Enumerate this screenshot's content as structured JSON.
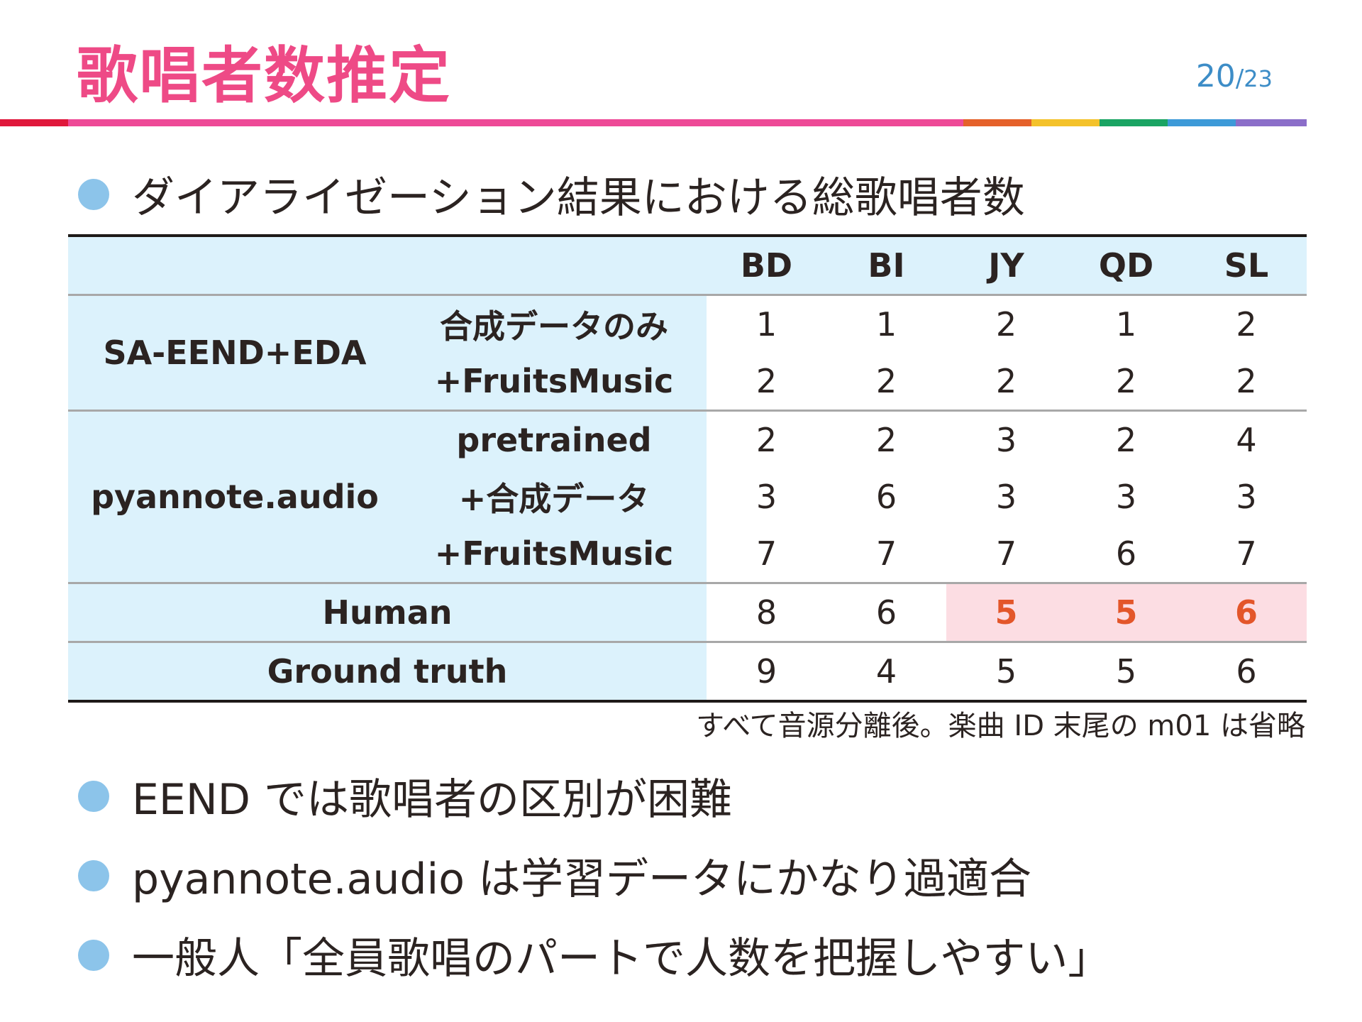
{
  "header": {
    "title": "歌唱者数推定",
    "page_current": "20",
    "page_separator": "/",
    "page_total": "23"
  },
  "colors": {
    "title": "#ee4a86",
    "bullet": "#8cc4ea",
    "table_header_bg": "#dcf2fc",
    "highlight_bg": "#fcdde3",
    "highlight_text": "#e3562a",
    "bar": [
      "#e0183b",
      "#ee4a97",
      "#e5612a",
      "#f4c22b",
      "#1aa463",
      "#3d9ad8",
      "#8b6ec9"
    ]
  },
  "bullets": {
    "b1": "ダイアライゼーション結果における総歌唱者数",
    "b2": "EEND では歌唱者の区別が困難",
    "b3": "pyannote.audio は学習データにかなり過適合",
    "b4": "一般人「全員歌唱のパートで人数を把握しやすい」"
  },
  "table": {
    "columns": [
      "BD",
      "BI",
      "JY",
      "QD",
      "SL"
    ],
    "groups": {
      "sa": {
        "method": "SA-EEND+EDA",
        "rows": [
          {
            "variant": "合成データのみ",
            "values": [
              "1",
              "1",
              "2",
              "1",
              "2"
            ]
          },
          {
            "variant": "+FruitsMusic",
            "values": [
              "2",
              "2",
              "2",
              "2",
              "2"
            ]
          }
        ]
      },
      "py": {
        "method": "pyannote.audio",
        "rows": [
          {
            "variant": "pretrained",
            "values": [
              "2",
              "2",
              "3",
              "2",
              "4"
            ]
          },
          {
            "variant": "+合成データ",
            "values": [
              "3",
              "6",
              "3",
              "3",
              "3"
            ]
          },
          {
            "variant": "+FruitsMusic",
            "values": [
              "7",
              "7",
              "7",
              "6",
              "7"
            ]
          }
        ]
      },
      "human": {
        "label": "Human",
        "values": [
          "8",
          "6",
          "5",
          "5",
          "6"
        ],
        "highlighted_columns": [
          "JY",
          "QD",
          "SL"
        ]
      },
      "gt": {
        "label": "Ground truth",
        "values": [
          "9",
          "4",
          "5",
          "5",
          "6"
        ]
      }
    },
    "note": "すべて音源分離後。楽曲 ID 末尾の m01 は省略"
  }
}
